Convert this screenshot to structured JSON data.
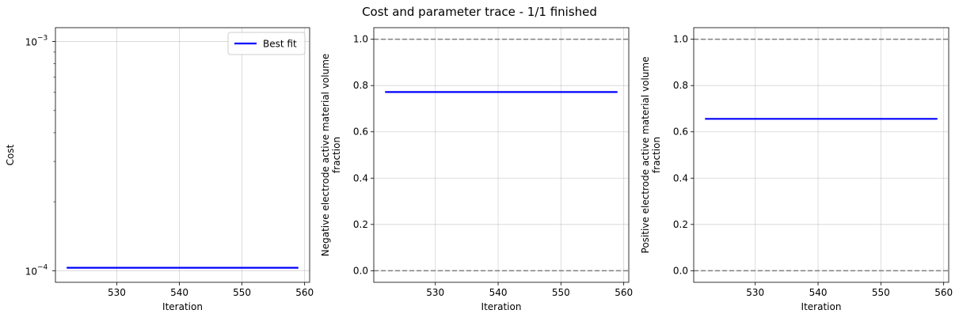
{
  "figure": {
    "title": "Cost and parameter trace - 1/1 finished"
  },
  "chart_data": [
    {
      "type": "line",
      "xlabel": "Iteration",
      "ylabel": "Cost",
      "yscale": "log",
      "xlim": [
        520.2,
        560.8
      ],
      "ylim": [
        8.9e-05,
        0.00115
      ],
      "x_ticks": [
        530,
        540,
        550,
        560
      ],
      "x_tick_labels": [
        "530",
        "540",
        "550",
        "560"
      ],
      "y_major_ticks": [
        0.0001,
        0.001
      ],
      "y_major_labels": [
        [
          "10",
          "−4"
        ],
        [
          "10",
          "−3"
        ]
      ],
      "grid": true,
      "legend": {
        "placement": "top-right",
        "entries": [
          "Best fit"
        ]
      },
      "series": [
        {
          "name": "Best fit",
          "color": "#0000ff",
          "x": [
            522,
            559
          ],
          "y": [
            0.000103,
            0.000103
          ]
        }
      ],
      "reference_lines": []
    },
    {
      "type": "line",
      "xlabel": "Iteration",
      "ylabel_lines": [
        "Negative electrode active material volume",
        "fraction"
      ],
      "yscale": "linear",
      "xlim": [
        520.2,
        560.8
      ],
      "ylim": [
        -0.05,
        1.05
      ],
      "x_ticks": [
        530,
        540,
        550,
        560
      ],
      "x_tick_labels": [
        "530",
        "540",
        "550",
        "560"
      ],
      "y_ticks": [
        0.0,
        0.2,
        0.4,
        0.6,
        0.8,
        1.0
      ],
      "y_tick_labels": [
        "0.0",
        "0.2",
        "0.4",
        "0.6",
        "0.8",
        "1.0"
      ],
      "grid": true,
      "series": [
        {
          "color": "#0000ff",
          "x": [
            522,
            559
          ],
          "y": [
            0.772,
            0.772
          ]
        }
      ],
      "reference_lines": [
        {
          "y": 1.0,
          "color": "#808080",
          "style": "dashed"
        },
        {
          "y": 0.0,
          "color": "#808080",
          "style": "dashed"
        }
      ]
    },
    {
      "type": "line",
      "xlabel": "Iteration",
      "ylabel_lines": [
        "Positive electrode active material volume",
        "fraction"
      ],
      "yscale": "linear",
      "xlim": [
        520.2,
        560.8
      ],
      "ylim": [
        -0.05,
        1.05
      ],
      "x_ticks": [
        530,
        540,
        550,
        560
      ],
      "x_tick_labels": [
        "530",
        "540",
        "550",
        "560"
      ],
      "y_ticks": [
        0.0,
        0.2,
        0.4,
        0.6,
        0.8,
        1.0
      ],
      "y_tick_labels": [
        "0.0",
        "0.2",
        "0.4",
        "0.6",
        "0.8",
        "1.0"
      ],
      "grid": true,
      "series": [
        {
          "color": "#0000ff",
          "x": [
            522,
            559
          ],
          "y": [
            0.656,
            0.656
          ]
        }
      ],
      "reference_lines": [
        {
          "y": 1.0,
          "color": "#808080",
          "style": "dashed"
        },
        {
          "y": 0.0,
          "color": "#808080",
          "style": "dashed"
        }
      ]
    }
  ]
}
